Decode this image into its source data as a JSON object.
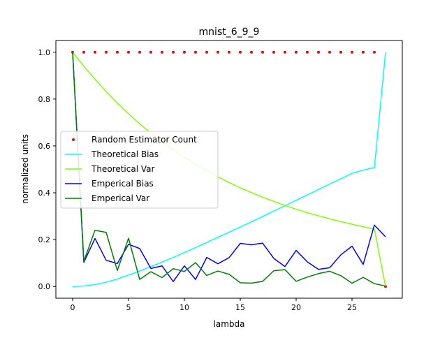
{
  "chart_data": {
    "type": "line",
    "title": "mnist_6_9_9",
    "xlabel": "lambda",
    "ylabel": "normalized units",
    "xlim": [
      -1.5,
      29.5
    ],
    "ylim": [
      -0.05,
      1.05
    ],
    "xticks": [
      0,
      5,
      10,
      15,
      20,
      25
    ],
    "yticks": [
      0.0,
      0.2,
      0.4,
      0.6,
      0.8,
      1.0
    ],
    "xtick_labels": [
      "0",
      "5",
      "10",
      "15",
      "20",
      "25"
    ],
    "ytick_labels": [
      "0.0",
      "0.2",
      "0.4",
      "0.6",
      "0.8",
      "1.0"
    ],
    "grid": false,
    "legend_position": "center-left",
    "x": [
      0,
      1,
      2,
      3,
      4,
      5,
      6,
      7,
      8,
      9,
      10,
      11,
      12,
      13,
      14,
      15,
      16,
      17,
      18,
      19,
      20,
      21,
      22,
      23,
      24,
      25,
      26,
      27,
      28
    ],
    "series": [
      {
        "name": "Random Estimator Count",
        "style": "dots",
        "color": "#ff0000",
        "values": [
          1,
          1,
          1,
          1,
          1,
          1,
          1,
          1,
          1,
          1,
          1,
          1,
          1,
          1,
          1,
          1,
          1,
          1,
          1,
          1,
          1,
          1,
          1,
          1,
          1,
          1,
          1,
          1,
          0
        ]
      },
      {
        "name": "Theoretical Bias",
        "style": "line",
        "color": "#00ffff",
        "values": [
          0.0,
          0.002,
          0.008,
          0.018,
          0.032,
          0.049,
          0.066,
          0.085,
          0.104,
          0.124,
          0.145,
          0.166,
          0.188,
          0.21,
          0.232,
          0.254,
          0.276,
          0.299,
          0.322,
          0.345,
          0.368,
          0.391,
          0.414,
          0.437,
          0.46,
          0.483,
          0.497,
          0.508,
          1.0
        ]
      },
      {
        "name": "Theoretical Var",
        "style": "line",
        "color": "#7fff00",
        "values": [
          1.0,
          0.94,
          0.885,
          0.832,
          0.783,
          0.737,
          0.694,
          0.655,
          0.617,
          0.583,
          0.551,
          0.521,
          0.494,
          0.468,
          0.444,
          0.421,
          0.401,
          0.381,
          0.363,
          0.346,
          0.33,
          0.315,
          0.302,
          0.289,
          0.277,
          0.266,
          0.255,
          0.245,
          0.0
        ]
      },
      {
        "name": "Emperical Bias",
        "style": "line",
        "color": "#0000ff",
        "values": [
          1.0,
          0.103,
          0.205,
          0.112,
          0.098,
          0.18,
          0.162,
          0.077,
          0.088,
          0.021,
          0.088,
          0.03,
          0.124,
          0.097,
          0.123,
          0.184,
          0.178,
          0.185,
          0.12,
          0.085,
          0.154,
          0.105,
          0.073,
          0.08,
          0.135,
          0.172,
          0.094,
          0.262,
          0.212
        ]
      },
      {
        "name": "Emperical Var",
        "style": "line",
        "color": "#008000",
        "values": [
          1.0,
          0.108,
          0.24,
          0.231,
          0.068,
          0.206,
          0.03,
          0.063,
          0.038,
          0.076,
          0.064,
          0.102,
          0.047,
          0.066,
          0.052,
          0.016,
          0.014,
          0.022,
          0.067,
          0.072,
          0.022,
          0.04,
          0.055,
          0.065,
          0.046,
          0.014,
          0.039,
          0.012,
          0.002
        ]
      }
    ]
  }
}
